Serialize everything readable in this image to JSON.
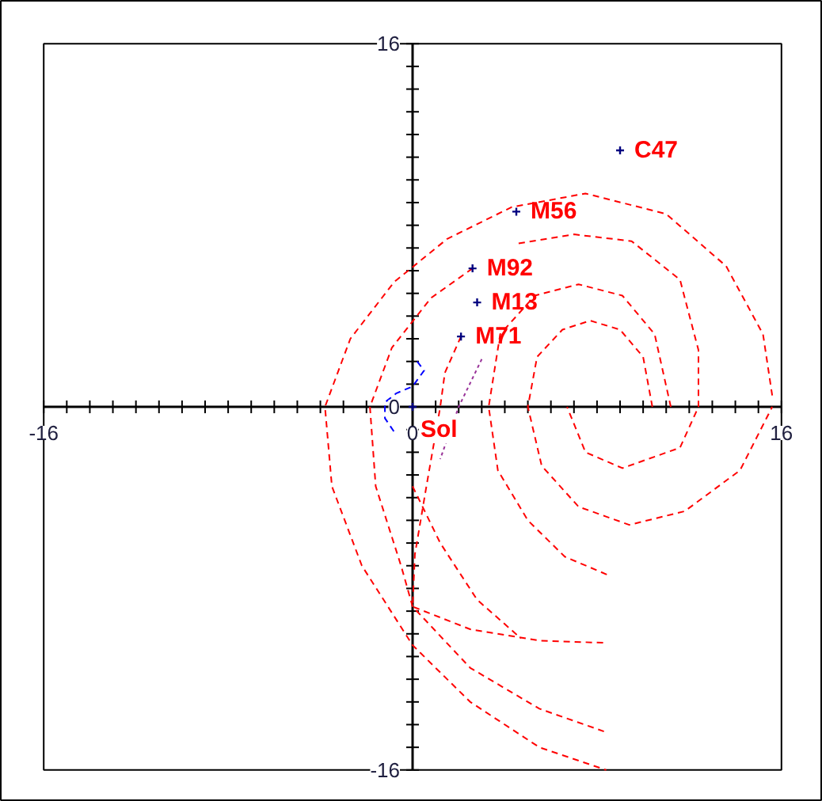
{
  "chart_data": {
    "type": "scatter",
    "xlim": [
      -16,
      16
    ],
    "ylim": [
      -16,
      16
    ],
    "xticks": [
      {
        "value": -16,
        "label": "-16"
      },
      {
        "value": -15,
        "label": null
      },
      {
        "value": -14,
        "label": null
      },
      {
        "value": -13,
        "label": null
      },
      {
        "value": -12,
        "label": null
      },
      {
        "value": -11,
        "label": null
      },
      {
        "value": -10,
        "label": null
      },
      {
        "value": -9,
        "label": null
      },
      {
        "value": -8,
        "label": null
      },
      {
        "value": -7,
        "label": null
      },
      {
        "value": -6,
        "label": null
      },
      {
        "value": -5,
        "label": null
      },
      {
        "value": -4,
        "label": null
      },
      {
        "value": -3,
        "label": null
      },
      {
        "value": -2,
        "label": null
      },
      {
        "value": -1,
        "label": null
      },
      0,
      {
        "value": 1,
        "label": null
      },
      {
        "value": 2,
        "label": null
      },
      {
        "value": 3,
        "label": null
      },
      {
        "value": 4,
        "label": null
      },
      {
        "value": 5,
        "label": null
      },
      {
        "value": 6,
        "label": null
      },
      {
        "value": 7,
        "label": null
      },
      {
        "value": 8,
        "label": null
      },
      {
        "value": 9,
        "label": null
      },
      {
        "value": 10,
        "label": null
      },
      {
        "value": 11,
        "label": null
      },
      {
        "value": 12,
        "label": null
      },
      {
        "value": 13,
        "label": null
      },
      {
        "value": 14,
        "label": null
      },
      {
        "value": 15,
        "label": null
      },
      16
    ],
    "yticks": [
      {
        "value": -16,
        "label": "-16"
      },
      {
        "value": -15,
        "label": null
      },
      {
        "value": -14,
        "label": null
      },
      {
        "value": -13,
        "label": null
      },
      {
        "value": -12,
        "label": null
      },
      {
        "value": -11,
        "label": null
      },
      {
        "value": -10,
        "label": null
      },
      {
        "value": -9,
        "label": null
      },
      {
        "value": -8,
        "label": null
      },
      {
        "value": -7,
        "label": null
      },
      {
        "value": -6,
        "label": null
      },
      {
        "value": -5,
        "label": null
      },
      {
        "value": -4,
        "label": null
      },
      {
        "value": -3,
        "label": null
      },
      {
        "value": -2,
        "label": null
      },
      {
        "value": -1,
        "label": null
      },
      0,
      {
        "value": 1,
        "label": null
      },
      {
        "value": 2,
        "label": null
      },
      {
        "value": 3,
        "label": null
      },
      {
        "value": 4,
        "label": null
      },
      {
        "value": 5,
        "label": null
      },
      {
        "value": 6,
        "label": null
      },
      {
        "value": 7,
        "label": null
      },
      {
        "value": 8,
        "label": null
      },
      {
        "value": 9,
        "label": null
      },
      {
        "value": 10,
        "label": null
      },
      {
        "value": 11,
        "label": null
      },
      {
        "value": 12,
        "label": null
      },
      {
        "value": 13,
        "label": null
      },
      {
        "value": 14,
        "label": null
      },
      {
        "value": 15,
        "label": null
      },
      16
    ],
    "series": [
      {
        "type": "line",
        "color": "#ff0000",
        "line_style": "dashed",
        "x": [
          10.4,
          10.0,
          9.0,
          7.7,
          6.5,
          5.4,
          5.0,
          5.6,
          7.2,
          9.4,
          11.8,
          14.2,
          15.6
        ],
        "values": [
          0,
          2.2,
          3.4,
          3.8,
          3.4,
          2.2,
          0,
          -2.6,
          -4.4,
          -5.2,
          -4.6,
          -2.8,
          0
        ]
      },
      {
        "type": "line",
        "color": "#ff0000",
        "line_style": "dashed",
        "x": [
          11.2,
          10.5,
          9.1,
          7.2,
          5.3,
          3.8,
          3.3,
          3.7,
          5.0,
          6.6,
          8.45
        ],
        "values": [
          0,
          3.2,
          4.9,
          5.4,
          4.9,
          3.2,
          0,
          -2.8,
          -5.0,
          -6.6,
          -7.4
        ]
      },
      {
        "type": "line",
        "color": "#ff0000",
        "line_style": "dashed",
        "x": [
          4.6,
          7.0,
          9.5,
          11.6,
          12.4,
          12.4,
          11.6,
          9.1,
          7.5,
          6.7
        ],
        "values": [
          7.2,
          7.6,
          7.3,
          5.6,
          2.5,
          0,
          -1.8,
          -2.7,
          -2.0,
          0
        ]
      },
      {
        "type": "line",
        "color": "#ff0000",
        "line_style": "dashed",
        "x": [
          15.6,
          15.2,
          13.6,
          11.0,
          7.5,
          4.3,
          1.5,
          -0.8,
          -2.7,
          -3.8,
          -3.5,
          -2.2,
          0,
          2.5,
          5.5,
          8.4
        ],
        "values": [
          0.5,
          3.2,
          6.2,
          8.5,
          9.4,
          8.8,
          7.4,
          5.5,
          3.0,
          0,
          -3.5,
          -7.0,
          -10.5,
          -13.0,
          -15.0,
          -16
        ]
      },
      {
        "type": "line",
        "color": "#ff0000",
        "line_style": "dashed",
        "x": [
          2.6,
          0.8,
          -0.9,
          -1.85,
          -1.6,
          -0.5,
          0,
          2.5,
          5.5,
          8.3
        ],
        "values": [
          6.1,
          4.8,
          2.6,
          0,
          -3.5,
          -7.0,
          -8.8,
          -11.5,
          -13.3,
          -14.3
        ]
      },
      {
        "type": "line",
        "color": "#ff0000",
        "line_style": "dashed",
        "x": [
          2.1,
          1.4,
          1.2,
          0.6,
          0.1,
          0,
          2.5,
          5.5,
          8.4
        ],
        "values": [
          3.1,
          1.5,
          0,
          -3.5,
          -6.5,
          -8.8,
          -9.8,
          -10.3,
          -10.4
        ]
      },
      {
        "type": "line",
        "color": "#ff0000",
        "line_style": "dashed",
        "x": [
          0,
          1.2,
          2.8,
          4.7
        ],
        "values": [
          -3.5,
          -6.0,
          -8.5,
          -10.2
        ]
      },
      {
        "type": "line",
        "color": "#0000ff",
        "line_style": "dashed",
        "x": [
          0.2,
          0.5,
          0,
          -0.7,
          -1.2,
          -1.2,
          -0.8
        ],
        "values": [
          2.0,
          1.6,
          0.9,
          0.6,
          0.2,
          -0.5,
          -1.1
        ]
      },
      {
        "type": "line",
        "color": "#993399",
        "line_style": "dotted",
        "x": [
          3.0,
          2.0,
          1.2
        ],
        "values": [
          2.1,
          0,
          -2.3
        ]
      },
      {
        "type": "scatter",
        "color": "#000080",
        "marker": "cross",
        "x": [
          9.0,
          4.5,
          2.6,
          2.8,
          2.1,
          0
        ],
        "values": [
          11.3,
          8.6,
          6.1,
          4.6,
          3.1,
          0
        ]
      }
    ],
    "annotations": [
      {
        "text": "C47",
        "x": 9.0,
        "y": 11.3
      },
      {
        "text": "M56",
        "x": 4.5,
        "y": 8.6
      },
      {
        "text": "M92",
        "x": 2.6,
        "y": 6.1
      },
      {
        "text": "M13",
        "x": 2.8,
        "y": 4.6
      },
      {
        "text": "M71",
        "x": 2.1,
        "y": 3.1
      },
      {
        "text": "Sol",
        "x": 0,
        "y": 0
      }
    ]
  }
}
